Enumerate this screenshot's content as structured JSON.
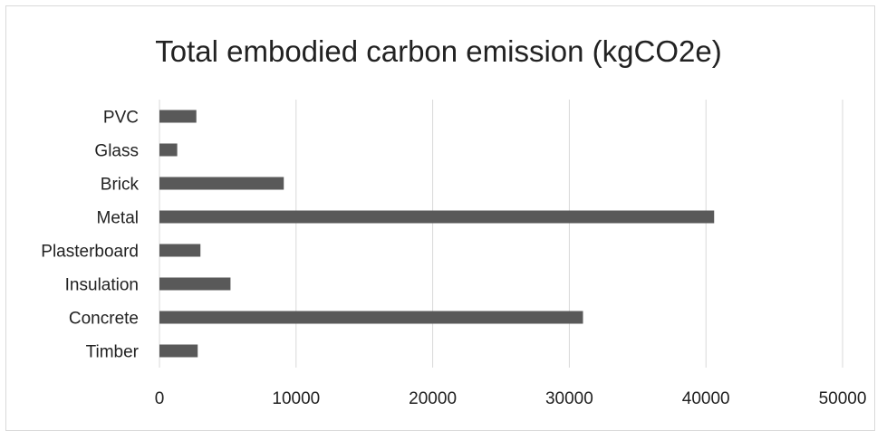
{
  "chart_data": {
    "type": "bar",
    "orientation": "horizontal",
    "title": "Total embodied carbon emission (kgCO2e)",
    "xlabel": "",
    "ylabel": "",
    "categories": [
      "Timber",
      "Concrete",
      "Insulation",
      "Plasterboard",
      "Metal",
      "Brick",
      "Glass",
      "PVC"
    ],
    "values": [
      2800,
      31000,
      5200,
      3000,
      40600,
      9100,
      1300,
      2700
    ],
    "xlim": [
      0,
      50000
    ],
    "xticks": [
      "0",
      "10000",
      "20000",
      "30000",
      "40000",
      "50000"
    ],
    "grid": true,
    "legend": "none",
    "bar_color": "#595959",
    "grid_color": "#d9d9d9"
  }
}
